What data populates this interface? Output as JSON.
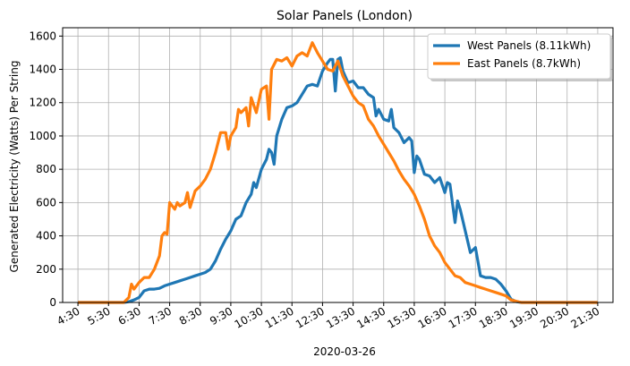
{
  "chart_data": {
    "type": "line",
    "title": "Solar Panels (London)",
    "xlabel": "2020-03-26",
    "ylabel": "Generated Electricity (Watts) Per String",
    "grid": true,
    "legend_position": "top-right",
    "xlim": [
      "04:00",
      "22:00"
    ],
    "ylim": [
      0,
      1650
    ],
    "x_ticks": [
      "4:30",
      "5:30",
      "6:30",
      "7:30",
      "8:30",
      "9:30",
      "10:30",
      "11:30",
      "12:30",
      "13:30",
      "14:30",
      "15:30",
      "16:30",
      "17:30",
      "18:30",
      "19:30",
      "20:30",
      "21:30"
    ],
    "y_ticks": [
      0,
      200,
      400,
      600,
      800,
      1000,
      1200,
      1400,
      1600
    ],
    "series": [
      {
        "name": "West Panels (8.11kWh)",
        "color": "#1f77b4",
        "points": [
          [
            "04:30",
            0
          ],
          [
            "05:30",
            0
          ],
          [
            "06:00",
            0
          ],
          [
            "06:10",
            5
          ],
          [
            "06:20",
            15
          ],
          [
            "06:30",
            30
          ],
          [
            "06:40",
            70
          ],
          [
            "06:50",
            80
          ],
          [
            "07:00",
            80
          ],
          [
            "07:10",
            85
          ],
          [
            "07:20",
            100
          ],
          [
            "07:30",
            110
          ],
          [
            "07:40",
            120
          ],
          [
            "07:50",
            130
          ],
          [
            "08:00",
            140
          ],
          [
            "08:10",
            150
          ],
          [
            "08:20",
            160
          ],
          [
            "08:30",
            170
          ],
          [
            "08:40",
            180
          ],
          [
            "08:50",
            200
          ],
          [
            "09:00",
            250
          ],
          [
            "09:10",
            320
          ],
          [
            "09:20",
            380
          ],
          [
            "09:30",
            430
          ],
          [
            "09:40",
            500
          ],
          [
            "09:50",
            520
          ],
          [
            "10:00",
            600
          ],
          [
            "10:10",
            650
          ],
          [
            "10:15",
            720
          ],
          [
            "10:20",
            690
          ],
          [
            "10:30",
            800
          ],
          [
            "10:40",
            860
          ],
          [
            "10:45",
            920
          ],
          [
            "10:50",
            900
          ],
          [
            "10:55",
            830
          ],
          [
            "11:00",
            1000
          ],
          [
            "11:10",
            1100
          ],
          [
            "11:20",
            1170
          ],
          [
            "11:30",
            1180
          ],
          [
            "11:40",
            1200
          ],
          [
            "11:50",
            1250
          ],
          [
            "12:00",
            1300
          ],
          [
            "12:10",
            1310
          ],
          [
            "12:20",
            1300
          ],
          [
            "12:30",
            1390
          ],
          [
            "12:40",
            1440
          ],
          [
            "12:45",
            1460
          ],
          [
            "12:50",
            1460
          ],
          [
            "12:55",
            1270
          ],
          [
            "13:00",
            1460
          ],
          [
            "13:05",
            1470
          ],
          [
            "13:10",
            1390
          ],
          [
            "13:20",
            1320
          ],
          [
            "13:30",
            1330
          ],
          [
            "13:40",
            1290
          ],
          [
            "13:50",
            1290
          ],
          [
            "14:00",
            1250
          ],
          [
            "14:10",
            1230
          ],
          [
            "14:15",
            1120
          ],
          [
            "14:20",
            1160
          ],
          [
            "14:30",
            1100
          ],
          [
            "14:40",
            1090
          ],
          [
            "14:45",
            1160
          ],
          [
            "14:50",
            1050
          ],
          [
            "15:00",
            1020
          ],
          [
            "15:10",
            960
          ],
          [
            "15:20",
            990
          ],
          [
            "15:25",
            970
          ],
          [
            "15:30",
            780
          ],
          [
            "15:35",
            880
          ],
          [
            "15:40",
            860
          ],
          [
            "15:50",
            770
          ],
          [
            "16:00",
            760
          ],
          [
            "16:10",
            720
          ],
          [
            "16:20",
            750
          ],
          [
            "16:30",
            660
          ],
          [
            "16:35",
            720
          ],
          [
            "16:40",
            710
          ],
          [
            "16:50",
            480
          ],
          [
            "16:55",
            610
          ],
          [
            "17:00",
            560
          ],
          [
            "17:10",
            430
          ],
          [
            "17:20",
            300
          ],
          [
            "17:30",
            330
          ],
          [
            "17:40",
            160
          ],
          [
            "17:50",
            150
          ],
          [
            "18:00",
            150
          ],
          [
            "18:10",
            140
          ],
          [
            "18:20",
            110
          ],
          [
            "18:30",
            70
          ],
          [
            "18:40",
            20
          ],
          [
            "18:50",
            5
          ],
          [
            "19:00",
            0
          ],
          [
            "21:30",
            0
          ]
        ]
      },
      {
        "name": "East Panels (8.7kWh)",
        "color": "#ff7f0e",
        "points": [
          [
            "04:30",
            0
          ],
          [
            "05:30",
            0
          ],
          [
            "06:00",
            0
          ],
          [
            "06:10",
            30
          ],
          [
            "06:15",
            110
          ],
          [
            "06:20",
            80
          ],
          [
            "06:30",
            120
          ],
          [
            "06:40",
            150
          ],
          [
            "06:50",
            150
          ],
          [
            "07:00",
            200
          ],
          [
            "07:10",
            280
          ],
          [
            "07:15",
            400
          ],
          [
            "07:20",
            420
          ],
          [
            "07:25",
            410
          ],
          [
            "07:30",
            600
          ],
          [
            "07:40",
            560
          ],
          [
            "07:45",
            600
          ],
          [
            "07:50",
            580
          ],
          [
            "08:00",
            600
          ],
          [
            "08:05",
            660
          ],
          [
            "08:10",
            570
          ],
          [
            "08:20",
            670
          ],
          [
            "08:30",
            700
          ],
          [
            "08:40",
            740
          ],
          [
            "08:50",
            800
          ],
          [
            "09:00",
            900
          ],
          [
            "09:10",
            1020
          ],
          [
            "09:20",
            1020
          ],
          [
            "09:25",
            920
          ],
          [
            "09:30",
            1000
          ],
          [
            "09:40",
            1050
          ],
          [
            "09:45",
            1160
          ],
          [
            "09:50",
            1140
          ],
          [
            "10:00",
            1170
          ],
          [
            "10:05",
            1060
          ],
          [
            "10:10",
            1230
          ],
          [
            "10:20",
            1140
          ],
          [
            "10:30",
            1280
          ],
          [
            "10:40",
            1300
          ],
          [
            "10:45",
            1100
          ],
          [
            "10:50",
            1400
          ],
          [
            "11:00",
            1460
          ],
          [
            "11:10",
            1450
          ],
          [
            "11:20",
            1470
          ],
          [
            "11:30",
            1420
          ],
          [
            "11:40",
            1480
          ],
          [
            "11:50",
            1500
          ],
          [
            "12:00",
            1480
          ],
          [
            "12:10",
            1560
          ],
          [
            "12:20",
            1500
          ],
          [
            "12:30",
            1450
          ],
          [
            "12:40",
            1400
          ],
          [
            "12:50",
            1390
          ],
          [
            "13:00",
            1450
          ],
          [
            "13:10",
            1360
          ],
          [
            "13:20",
            1300
          ],
          [
            "13:30",
            1240
          ],
          [
            "13:40",
            1200
          ],
          [
            "13:50",
            1180
          ],
          [
            "14:00",
            1100
          ],
          [
            "14:10",
            1060
          ],
          [
            "14:20",
            1000
          ],
          [
            "14:30",
            950
          ],
          [
            "14:40",
            900
          ],
          [
            "14:50",
            850
          ],
          [
            "15:00",
            790
          ],
          [
            "15:10",
            740
          ],
          [
            "15:20",
            700
          ],
          [
            "15:30",
            650
          ],
          [
            "15:40",
            580
          ],
          [
            "15:50",
            500
          ],
          [
            "16:00",
            400
          ],
          [
            "16:10",
            340
          ],
          [
            "16:20",
            300
          ],
          [
            "16:30",
            240
          ],
          [
            "16:40",
            200
          ],
          [
            "16:50",
            160
          ],
          [
            "17:00",
            150
          ],
          [
            "17:10",
            120
          ],
          [
            "17:20",
            110
          ],
          [
            "17:30",
            100
          ],
          [
            "17:40",
            90
          ],
          [
            "17:50",
            80
          ],
          [
            "18:00",
            70
          ],
          [
            "18:10",
            60
          ],
          [
            "18:20",
            50
          ],
          [
            "18:30",
            40
          ],
          [
            "18:40",
            15
          ],
          [
            "19:00",
            0
          ],
          [
            "21:30",
            0
          ]
        ]
      }
    ]
  }
}
